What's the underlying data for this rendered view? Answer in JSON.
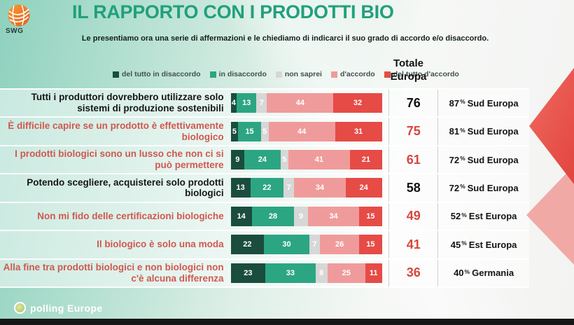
{
  "header": {
    "logo_text": "SWG",
    "title": "IL RAPPORTO CON I PRODOTTI BIO",
    "subtitle": "Le presentiamo ora una serie di affermazioni e le chiediamo di indicarci il suo grado di accordo e/o disaccordo."
  },
  "columns": {
    "total_line1": "Totale",
    "total_line2": "Europa"
  },
  "labels": {
    "percent_sign": "%"
  },
  "colors": {
    "title_teal": "#21a07c",
    "label_dark": "#161616",
    "label_red": "#d0584f",
    "total_dark": "#111111",
    "total_red": "#d8453e",
    "arrow_red": "#e9534d",
    "arrow_pink": "#f1a9a5"
  },
  "chart_data": {
    "type": "bar",
    "orientation": "horizontal-stacked",
    "x_max": 100,
    "legend_position": "top",
    "series": [
      {
        "name": "del tutto in disaccordo",
        "color": "#1a4d3d"
      },
      {
        "name": "in disaccordo",
        "color": "#2ca583"
      },
      {
        "name": "non saprei",
        "color": "#d7d7d7"
      },
      {
        "name": "d'accordo",
        "color": "#f09b9b"
      },
      {
        "name": "del tutto d'accordo",
        "color": "#e64b46"
      }
    ],
    "rows": [
      {
        "label": "Tutti i produttori dovrebbero utilizzare solo sistemi di produzione sostenibili",
        "emphasis": "dark",
        "values": [
          4,
          13,
          7,
          44,
          32
        ],
        "total": 76,
        "region_pct": "87",
        "region_name": "Sud Europa"
      },
      {
        "label": "È difficile capire se un prodotto è effettivamente biologico",
        "emphasis": "red",
        "values": [
          5,
          15,
          5,
          44,
          31
        ],
        "total": 75,
        "region_pct": "81",
        "region_name": "Sud Europa"
      },
      {
        "label": "I prodotti biologici sono un lusso che non ci si può permettere",
        "emphasis": "red",
        "values": [
          9,
          24,
          5,
          41,
          21
        ],
        "total": 61,
        "region_pct": "72",
        "region_name": "Sud Europa"
      },
      {
        "label": "Potendo scegliere, acquisterei solo prodotti biologici",
        "emphasis": "dark",
        "values": [
          13,
          22,
          7,
          34,
          24
        ],
        "total": 58,
        "region_pct": "72",
        "region_name": "Sud Europa"
      },
      {
        "label": "Non mi fido delle certificazioni biologiche",
        "emphasis": "red",
        "values": [
          14,
          28,
          9,
          34,
          15
        ],
        "total": 49,
        "region_pct": "52",
        "region_name": "Est Europa"
      },
      {
        "label": "Il biologico è solo una moda",
        "emphasis": "red",
        "values": [
          22,
          30,
          7,
          26,
          15
        ],
        "total": 41,
        "region_pct": "45",
        "region_name": "Est Europa"
      },
      {
        "label": "Alla fine tra prodotti biologici e non biologici non c'è alcuna differenza",
        "emphasis": "red",
        "values": [
          23,
          33,
          8,
          25,
          11
        ],
        "total": 36,
        "region_pct": "40",
        "region_name": "Germania"
      }
    ]
  },
  "footer": {
    "logo_text": "polling Europe"
  }
}
